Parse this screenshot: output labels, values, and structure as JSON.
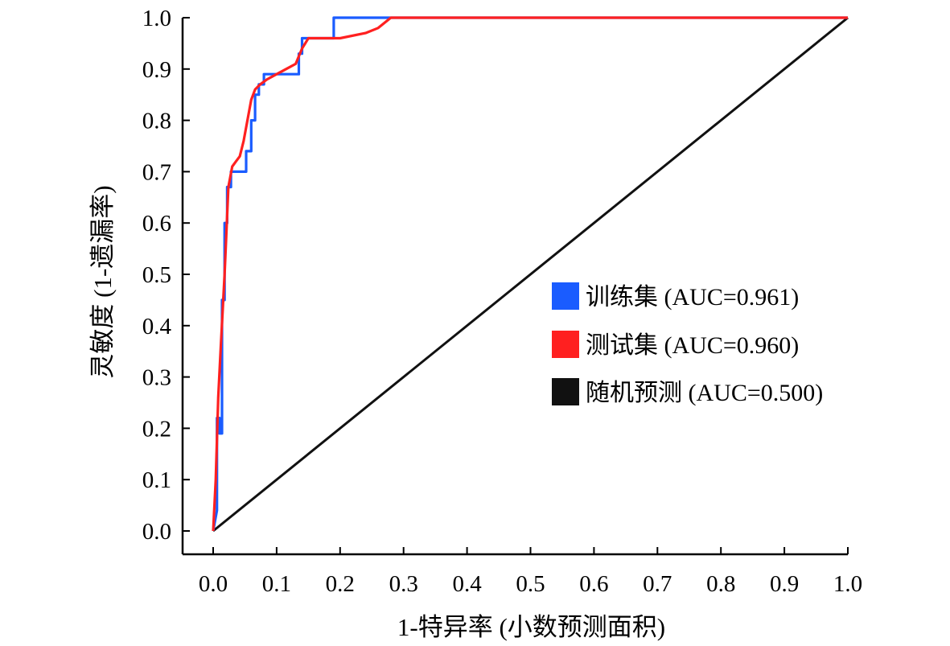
{
  "chart_data": {
    "type": "line",
    "xlabel": "1-特异率 (小数预测面积)",
    "ylabel": "灵敏度 (1-遗漏率)",
    "xlim": [
      0,
      1
    ],
    "ylim": [
      0,
      1
    ],
    "x_ticks": [
      "0.0",
      "0.1",
      "0.2",
      "0.3",
      "0.4",
      "0.5",
      "0.6",
      "0.7",
      "0.8",
      "0.9",
      "1.0"
    ],
    "y_ticks": [
      "0.0",
      "0.1",
      "0.2",
      "0.3",
      "0.4",
      "0.5",
      "0.6",
      "0.7",
      "0.8",
      "0.9",
      "1.0"
    ],
    "grid": false,
    "legend_position": "center-right",
    "series": [
      {
        "name": "训练集 (AUC=0.961)",
        "color": "#1a5cff",
        "x": [
          0,
          0.006,
          0.006,
          0.01,
          0.01,
          0.014,
          0.014,
          0.018,
          0.018,
          0.022,
          0.022,
          0.028,
          0.028,
          0.035,
          0.052,
          0.052,
          0.06,
          0.06,
          0.066,
          0.066,
          0.072,
          0.072,
          0.08,
          0.08,
          0.135,
          0.135,
          0.14,
          0.14,
          0.19,
          0.19,
          1.0
        ],
        "y": [
          0,
          0.04,
          0.22,
          0.22,
          0.19,
          0.19,
          0.45,
          0.45,
          0.6,
          0.6,
          0.67,
          0.67,
          0.7,
          0.7,
          0.7,
          0.74,
          0.74,
          0.8,
          0.8,
          0.85,
          0.85,
          0.87,
          0.87,
          0.89,
          0.89,
          0.93,
          0.93,
          0.96,
          0.96,
          1.0,
          1.0
        ]
      },
      {
        "name": "测试集 (AUC=0.960)",
        "color": "#ff2020",
        "x": [
          0,
          0.004,
          0.008,
          0.012,
          0.018,
          0.024,
          0.03,
          0.036,
          0.042,
          0.048,
          0.054,
          0.06,
          0.066,
          0.074,
          0.085,
          0.1,
          0.115,
          0.13,
          0.14,
          0.15,
          0.2,
          0.24,
          0.26,
          0.27,
          0.28,
          1.0
        ],
        "y": [
          0,
          0.1,
          0.26,
          0.36,
          0.5,
          0.67,
          0.71,
          0.72,
          0.73,
          0.76,
          0.8,
          0.84,
          0.86,
          0.87,
          0.88,
          0.89,
          0.9,
          0.91,
          0.94,
          0.96,
          0.96,
          0.97,
          0.98,
          0.99,
          1.0,
          1.0
        ]
      },
      {
        "name": "随机预测 (AUC=0.500)",
        "color": "#111111",
        "x": [
          0,
          1
        ],
        "y": [
          0,
          1
        ]
      }
    ]
  }
}
